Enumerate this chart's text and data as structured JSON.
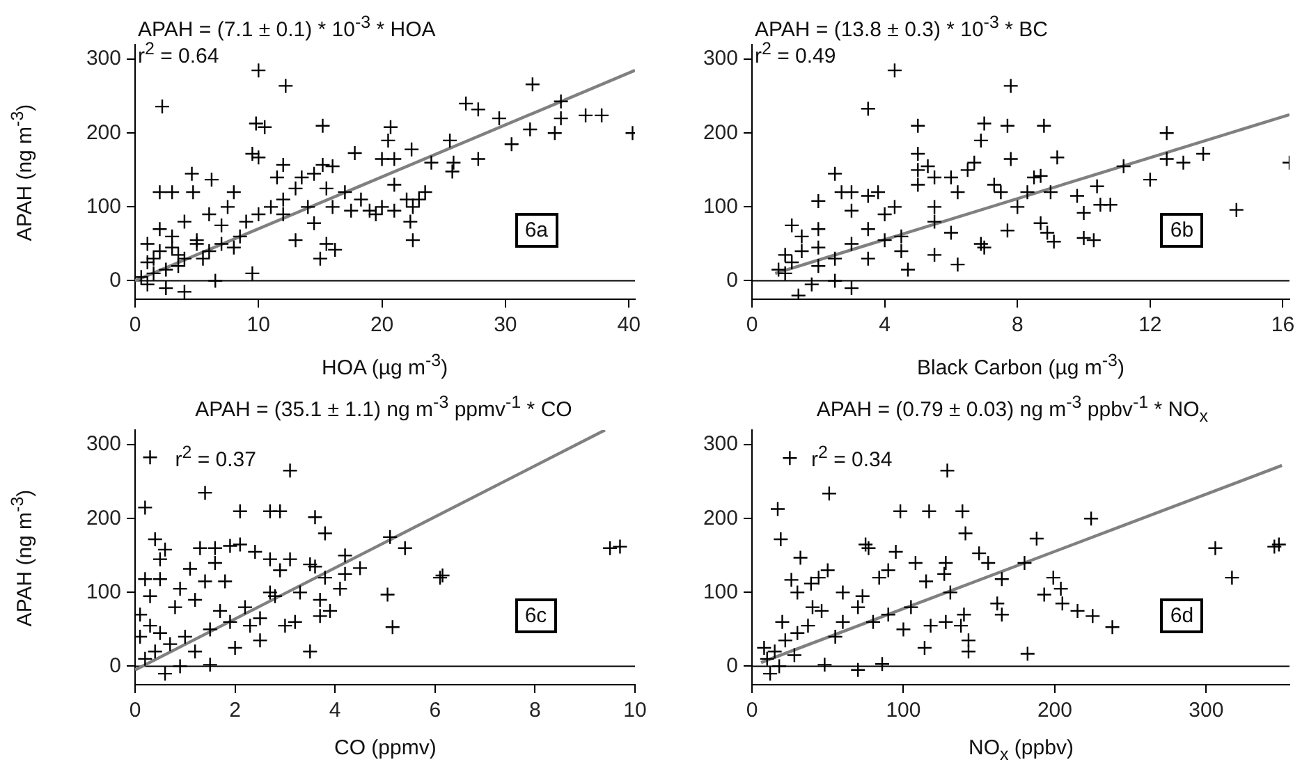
{
  "chart_data": [
    {
      "type": "scatter",
      "xlabel": "HOA (µg m$^{-3}$)",
      "ylabel": "APAH (ng m$^{-3}$)",
      "annotations": [
        "APAH = (7.1 ± 0.1) * 10$^{-3}$ * HOA",
        "r$^{2}$ = 0.64",
        "6a"
      ],
      "xlim": [
        0,
        40.5
      ],
      "xticks": [
        0,
        10,
        20,
        30,
        40
      ],
      "ylim": [
        -25,
        320
      ],
      "yticks": [
        0,
        100,
        200,
        300
      ],
      "ref_lines": [
        {
          "axis": "y",
          "value": 0,
          "color": "#000000"
        }
      ],
      "series": [
        {
          "type": "scatter",
          "color": "#000000",
          "marker": "cross",
          "x": [
            2.2,
            10,
            12.2,
            9.8,
            10.5,
            15.2,
            20.7,
            20.5,
            22.4,
            21,
            17.8,
            20,
            12,
            9.5,
            10,
            15.2,
            16,
            2,
            3,
            4.6,
            4.7,
            6.2,
            11.5,
            13.5,
            14.5,
            15.5,
            17,
            18.3,
            19,
            19.5,
            21,
            22,
            22.5,
            23,
            23.5,
            22.5,
            22.3,
            20,
            21,
            15,
            15.5,
            16.2,
            14.5,
            13,
            12,
            9.5,
            10,
            8.5,
            7,
            7.5,
            8,
            6,
            5,
            4,
            3,
            3.5,
            2,
            1.5,
            1,
            2.5,
            4,
            6.5,
            1,
            2,
            3,
            4,
            5,
            6,
            7,
            9,
            11,
            12,
            13,
            14,
            16,
            17.5,
            0.5,
            1,
            1.5,
            2.5,
            3.5,
            5.5,
            8,
            25.5,
            25.8,
            25.7,
            24,
            27.8,
            26.8,
            27.8,
            29.5,
            32.2,
            32,
            30.5,
            34.5,
            34.5,
            34,
            36.5,
            37.8,
            40.3
          ],
          "values": [
            236,
            285,
            264,
            213,
            208,
            210,
            208,
            190,
            178,
            165,
            173,
            165,
            157,
            172,
            167,
            157,
            155,
            120,
            120,
            145,
            120,
            137,
            140,
            140,
            145,
            125,
            120,
            110,
            95,
            90,
            130,
            110,
            100,
            110,
            120,
            55,
            80,
            100,
            95,
            30,
            50,
            42,
            78,
            55,
            90,
            10,
            90,
            60,
            75,
            100,
            120,
            40,
            55,
            30,
            60,
            20,
            40,
            10,
            25,
            -10,
            -15,
            0,
            50,
            70,
            45,
            80,
            50,
            90,
            50,
            80,
            100,
            110,
            125,
            100,
            100,
            95,
            5,
            -5,
            30,
            15,
            35,
            30,
            45,
            190,
            160,
            148,
            160,
            165,
            240,
            232,
            220,
            266,
            205,
            185,
            243,
            220,
            200,
            224,
            224,
            200
          ]
        },
        {
          "type": "line",
          "color": "#808080",
          "marker": "none",
          "x": [
            0,
            40.5
          ],
          "values": [
            0,
            285
          ]
        }
      ]
    },
    {
      "type": "scatter",
      "xlabel": "Black Carbon (µg m$^{-3}$)",
      "annotations": [
        "APAH = (13.8 ± 0.3) * 10$^{-3}$ * BC",
        "r$^{2}$ = 0.49",
        "6b"
      ],
      "xlim": [
        0,
        16.2
      ],
      "xticks": [
        0,
        4,
        8,
        12,
        16
      ],
      "ylim": [
        -25,
        320
      ],
      "yticks": [
        0,
        100,
        200,
        300
      ],
      "ref_lines": [
        {
          "axis": "y",
          "value": 0,
          "color": "#000000"
        }
      ],
      "series": [
        {
          "type": "scatter",
          "color": "#000000",
          "marker": "cross",
          "x": [
            4.3,
            7.8,
            3.5,
            5,
            7,
            7.7,
            8.8,
            6.9,
            5,
            5,
            5.3,
            7.8,
            9.2,
            6.7,
            6.5,
            6,
            5.5,
            8.5,
            8.7,
            7.3,
            7.5,
            6.2,
            5,
            2.5,
            3,
            2.7,
            3.5,
            3.8,
            2,
            4.3,
            5.5,
            9,
            8.3,
            8,
            9.8,
            10,
            10.4,
            10.5,
            10.8,
            11.2,
            12,
            12.5,
            12.5,
            13,
            13.6,
            14.6,
            16.2,
            10,
            10.3,
            9.1,
            8.9,
            8.7,
            7.7,
            6.9,
            7,
            6.2,
            5.5,
            4.5,
            4,
            3.5,
            3,
            2.5,
            2,
            1.5,
            1.2,
            1,
            0.8,
            1.2,
            1.5,
            2,
            2.5,
            3,
            1.4,
            1.8,
            4.7,
            5.5,
            6,
            4,
            3,
            2,
            1,
            3.5,
            4.5
          ],
          "values": [
            285,
            264,
            233,
            210,
            213,
            210,
            210,
            190,
            172,
            150,
            155,
            165,
            167,
            160,
            150,
            140,
            140,
            140,
            142,
            130,
            120,
            120,
            130,
            145,
            120,
            120,
            115,
            120,
            108,
            100,
            100,
            120,
            120,
            100,
            115,
            92,
            128,
            103,
            103,
            155,
            137,
            200,
            165,
            160,
            172,
            96,
            160,
            58,
            55,
            53,
            65,
            78,
            68,
            50,
            45,
            22,
            35,
            40,
            55,
            70,
            50,
            30,
            45,
            40,
            25,
            10,
            15,
            75,
            60,
            20,
            0,
            -10,
            -20,
            -5,
            15,
            80,
            65,
            90,
            95,
            70,
            35,
            30,
            60
          ]
        },
        {
          "type": "line",
          "color": "#808080",
          "marker": "none",
          "x": [
            0.7,
            16.2
          ],
          "values": [
            10,
            225
          ]
        }
      ]
    },
    {
      "type": "scatter",
      "xlabel": "CO (ppmv)",
      "ylabel": "APAH (ng m$^{-3}$)",
      "annotations": [
        "APAH = (35.1 ± 1.1) ng m$^{-3}$ ppmv$^{-1}$ * CO",
        "r$^{2}$ = 0.37",
        "6c"
      ],
      "xlim": [
        0,
        10
      ],
      "xticks": [
        0,
        2,
        4,
        6,
        8,
        10
      ],
      "ylim": [
        -25,
        320
      ],
      "yticks": [
        0,
        100,
        200,
        300
      ],
      "ref_lines": [
        {
          "axis": "y",
          "value": 0,
          "color": "#000000"
        }
      ],
      "series": [
        {
          "type": "scatter",
          "color": "#000000",
          "marker": "cross",
          "x": [
            0.3,
            3.1,
            1.4,
            0.2,
            2.1,
            2.7,
            2.9,
            3.6,
            3.8,
            5.1,
            5.4,
            9.5,
            9.7,
            6.1,
            6.15,
            4.5,
            4.2,
            4.2,
            3.5,
            3.8,
            4.1,
            5.05,
            5.15,
            3.5,
            2,
            1.5,
            3.9,
            3.7,
            3.2,
            3,
            3.7,
            3.6,
            3.1,
            2.9,
            2.7,
            2.4,
            2.1,
            1.9,
            1.6,
            1.3,
            0.4,
            0.6,
            0.5,
            1.1,
            1.6,
            1.8,
            1.4,
            0.9,
            0.5,
            0.2,
            0.3,
            0.1,
            0.8,
            1.2,
            1.7,
            2.2,
            2.5,
            2.8,
            2.3,
            1.9,
            1.5,
            1,
            0.7,
            0.4,
            0.2,
            0.6,
            0.9,
            0.3,
            0.5,
            0.1,
            1.2,
            2.5,
            2.7,
            3.3
          ],
          "values": [
            283,
            265,
            235,
            215,
            210,
            210,
            210,
            202,
            180,
            175,
            160,
            160,
            162,
            120,
            123,
            133,
            150,
            125,
            138,
            120,
            105,
            97,
            53,
            20,
            25,
            2,
            75,
            68,
            60,
            55,
            90,
            135,
            145,
            130,
            145,
            155,
            165,
            163,
            160,
            160,
            172,
            158,
            145,
            132,
            140,
            115,
            115,
            105,
            118,
            118,
            95,
            70,
            80,
            90,
            75,
            80,
            65,
            95,
            55,
            60,
            50,
            40,
            30,
            20,
            10,
            -10,
            0,
            55,
            45,
            40,
            20,
            35,
            100,
            100
          ]
        },
        {
          "type": "line",
          "color": "#808080",
          "marker": "none",
          "x": [
            0,
            9.4
          ],
          "values": [
            -5,
            320
          ]
        }
      ]
    },
    {
      "type": "scatter",
      "xlabel": "NO$_{x}$ (ppbv)",
      "annotations": [
        "APAH = (0.79 ± 0.03) ng m$^{-3}$ ppbv$^{-1}$ * NO$_{x}$",
        "r$^{2}$ = 0.34",
        "6d"
      ],
      "xlim": [
        0,
        355
      ],
      "xticks": [
        0,
        100,
        200,
        300
      ],
      "ylim": [
        -25,
        320
      ],
      "yticks": [
        0,
        100,
        200,
        300
      ],
      "ref_lines": [
        {
          "axis": "y",
          "value": 0,
          "color": "#000000"
        }
      ],
      "series": [
        {
          "type": "scatter",
          "color": "#000000",
          "marker": "cross",
          "x": [
            25,
            129,
            51,
            17,
            19,
            32,
            98,
            117,
            139,
            141,
            150,
            156,
            188,
            224,
            180,
            199,
            204,
            205,
            215,
            225,
            238,
            193,
            182,
            306,
            345,
            348,
            317,
            165,
            162,
            165,
            143,
            143,
            86,
            114,
            118,
            128,
            138,
            131,
            127,
            115,
            108,
            95,
            90,
            84,
            75,
            77,
            73,
            70,
            60,
            50,
            44,
            39,
            26,
            30,
            46,
            37,
            30,
            22,
            15,
            10,
            12,
            18,
            28,
            55,
            80,
            90,
            100,
            105,
            60,
            40,
            20,
            8,
            70,
            48,
            140,
            128
          ],
          "values": [
            282,
            265,
            234,
            213,
            172,
            147,
            210,
            210,
            210,
            180,
            153,
            140,
            173,
            200,
            140,
            120,
            105,
            85,
            75,
            68,
            53,
            97,
            17,
            160,
            162,
            165,
            120,
            118,
            85,
            70,
            35,
            20,
            3,
            25,
            55,
            60,
            55,
            100,
            125,
            115,
            140,
            155,
            130,
            120,
            165,
            160,
            95,
            80,
            100,
            130,
            120,
            112,
            117,
            100,
            75,
            55,
            45,
            35,
            20,
            10,
            -10,
            0,
            15,
            40,
            60,
            70,
            50,
            80,
            60,
            80,
            60,
            25,
            -5,
            2,
            70,
            140
          ]
        },
        {
          "type": "line",
          "color": "#808080",
          "marker": "none",
          "x": [
            6,
            350
          ],
          "values": [
            5,
            272
          ]
        }
      ]
    }
  ]
}
